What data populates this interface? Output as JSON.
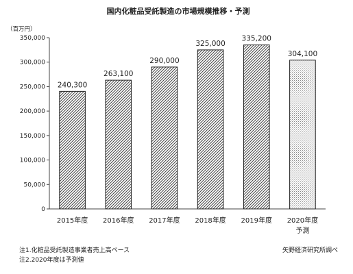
{
  "chart_data": {
    "type": "bar",
    "title": "国内化粧品受託製造の市場規模推移・予測",
    "unit_label": "（百万円）",
    "categories": [
      "2015年度",
      "2016年度",
      "2017年度",
      "2018年度",
      "2019年度",
      "2020年度"
    ],
    "category_sublabels": [
      "",
      "",
      "",
      "",
      "",
      "予測"
    ],
    "values": [
      240300,
      263100,
      290000,
      325000,
      335200,
      304100
    ],
    "value_labels": [
      "240,300",
      "263,100",
      "290,000",
      "325,000",
      "335,200",
      "304,100"
    ],
    "yticks": [
      0,
      50000,
      100000,
      150000,
      200000,
      250000,
      300000,
      350000
    ],
    "ytick_labels": [
      "0",
      "50,000",
      "100,000",
      "150,000",
      "200,000",
      "250,000",
      "300,000",
      "350,000"
    ],
    "ylim": [
      0,
      350000
    ],
    "bar_styles": [
      "hatched",
      "hatched",
      "hatched",
      "hatched",
      "hatched",
      "dotted"
    ],
    "grid": false,
    "legend": "none"
  },
  "notes": {
    "note1": "注1.化粧品受託製造事業者売上高ベース",
    "note2": "注2.2020年度は予測値",
    "source": "矢野経済研究所調べ"
  },
  "colors": {
    "bar_stroke": "#222222",
    "hatch": "#444444",
    "dot": "#888888",
    "axis": "#444444"
  }
}
